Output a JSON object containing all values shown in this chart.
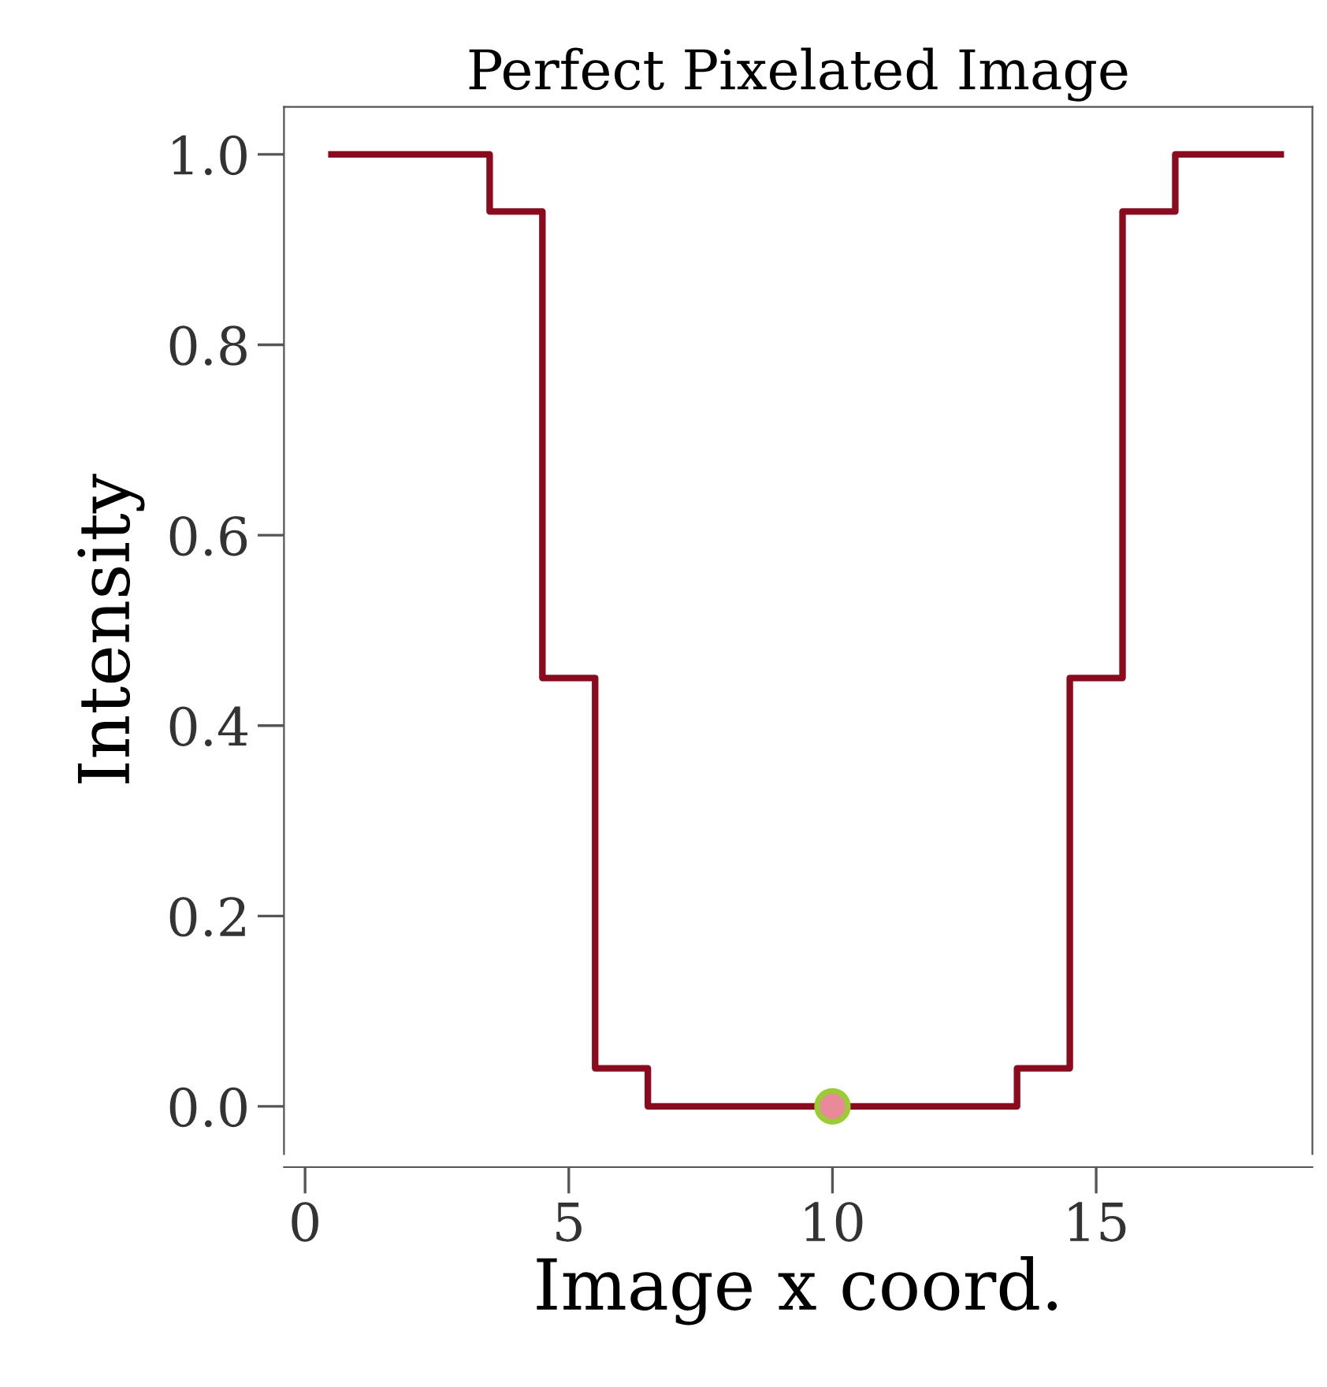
{
  "chart_data": {
    "type": "step",
    "title": "Perfect Pixelated Image",
    "xlabel": "Image x coord.",
    "ylabel": "Intensity",
    "series": [
      {
        "color": "#8b0a1e",
        "x": [
          0.5,
          1.5,
          2.5,
          3.5,
          4.5,
          5.5,
          6.5,
          7.5,
          8.5,
          9.5,
          10.5,
          11.5,
          12.5,
          13.5,
          14.5,
          15.5,
          16.5,
          17.5,
          18.5
        ],
        "values": [
          1.0,
          1.0,
          1.0,
          0.94,
          0.45,
          0.04,
          0.0,
          0.0,
          0.0,
          0.0,
          0.0,
          0.0,
          0.0,
          0.04,
          0.45,
          0.94,
          1.0,
          1.0,
          1.0
        ]
      },
      {
        "type": "scatter",
        "color": "#e88a9a",
        "marker": "circle",
        "x": [
          10
        ],
        "values": [
          0.0
        ]
      }
    ],
    "xlim": [
      -0.4,
      19.1
    ],
    "ylim": [
      -0.05,
      1.05
    ],
    "xticks": [
      0,
      5,
      10,
      15
    ],
    "yticks": [
      {
        "value": 0,
        "label": "0.0"
      },
      {
        "value": 0.2,
        "label": "0.2"
      },
      {
        "value": 0.4,
        "label": "0.4"
      },
      {
        "value": 0.6,
        "label": "0.6"
      },
      {
        "value": 0.8,
        "label": "0.8"
      },
      {
        "value": 1.0,
        "label": "1.0"
      }
    ],
    "grid": false,
    "legend": false,
    "line_style": "solid"
  }
}
